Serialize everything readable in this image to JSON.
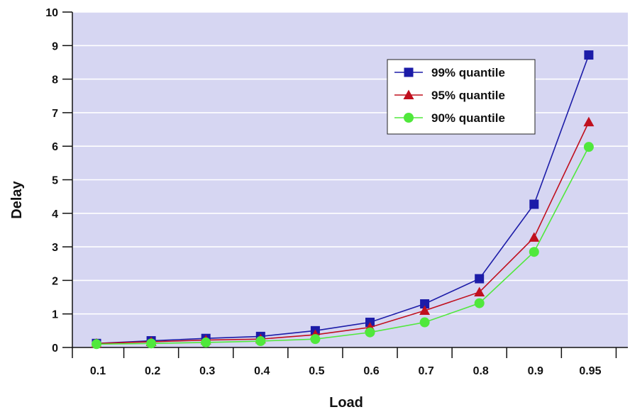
{
  "chart_data": {
    "type": "line",
    "title": "",
    "xlabel": "Load",
    "ylabel": "Delay",
    "x": [
      "0.1",
      "0.2",
      "0.3",
      "0.4",
      "0.5",
      "0.6",
      "0.7",
      "0.8",
      "0.9",
      "0.95"
    ],
    "y_ticks": [
      "0",
      "1",
      "2",
      "3",
      "4",
      "5",
      "6",
      "7",
      "8",
      "9",
      "10"
    ],
    "ylim": [
      0,
      10
    ],
    "grid": "horizontal",
    "legend_position": "top-right",
    "plot_background": "#d6d6f2",
    "series": [
      {
        "name": "99% quantile",
        "marker": "square",
        "color": "#1c1ca8",
        "values": [
          0.12,
          0.2,
          0.27,
          0.33,
          0.5,
          0.75,
          1.3,
          2.05,
          4.27,
          8.72
        ]
      },
      {
        "name": "95% quantile",
        "marker": "triangle",
        "color": "#c0101e",
        "values": [
          0.12,
          0.17,
          0.22,
          0.25,
          0.38,
          0.6,
          1.1,
          1.65,
          3.28,
          6.72
        ]
      },
      {
        "name": "90% quantile",
        "marker": "circle",
        "color": "#50e83c",
        "values": [
          0.1,
          0.12,
          0.15,
          0.19,
          0.25,
          0.45,
          0.75,
          1.32,
          2.85,
          5.98
        ]
      }
    ]
  }
}
